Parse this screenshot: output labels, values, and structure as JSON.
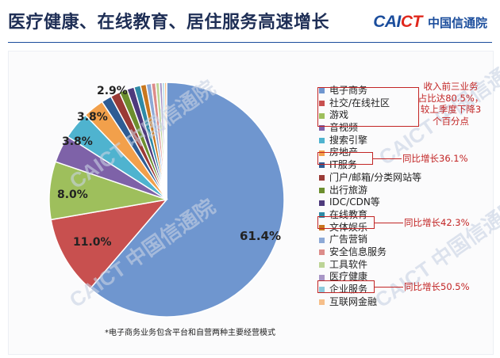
{
  "header": {
    "title": "医疗健康、在线教育、居住服务高速增长",
    "logo_brand_a": "CAI",
    "logo_brand_b": "CT",
    "logo_org": "中国信通院"
  },
  "footnote": "*电子商务业务包含平台和自营两种主要经营模式",
  "callouts": {
    "top3": [
      "收入前三业务",
      "占比达80.5%，",
      "较上季度下降3",
      "个百分点"
    ],
    "real_estate": "同比增长36.1%",
    "online_education": "同比增长42.3%",
    "medical": "同比增长50.5%"
  },
  "chart_data": {
    "type": "pie",
    "title": "",
    "start_angle_deg": 0,
    "clockwise": true,
    "labels": [
      "电子商务",
      "社交/在线社区",
      "游戏",
      "音视频",
      "搜索引擎",
      "房地产",
      "IT服务",
      "门户/邮箱/分类网站等",
      "出行旅游",
      "IDC/CDN等",
      "在线教育",
      "文体娱乐",
      "广告营销",
      "安全信息服务",
      "工具软件",
      "医疗健康",
      "企业服务",
      "互联网金融"
    ],
    "values": [
      61.4,
      11.0,
      8.0,
      3.8,
      3.8,
      2.9,
      1.4,
      1.3,
      1.1,
      1.0,
      0.9,
      0.8,
      0.7,
      0.6,
      0.5,
      0.4,
      0.3,
      0.3
    ],
    "shown_value_labels": [
      "61.4%",
      "11.0%",
      "8.0%",
      "3.8%",
      "3.8%",
      "2.9%"
    ],
    "colors": [
      "#6f96cf",
      "#c8504f",
      "#9ebf5c",
      "#7e62a8",
      "#4fb3cf",
      "#f2a04b",
      "#2e5c94",
      "#9a3a36",
      "#6c8e2e",
      "#4e3a7c",
      "#2e8aa6",
      "#c8771f",
      "#8da9d6",
      "#dc8c8a",
      "#bcd496",
      "#a996c6",
      "#8cc9dc",
      "#f6bf8a"
    ],
    "legend_position": "right"
  }
}
